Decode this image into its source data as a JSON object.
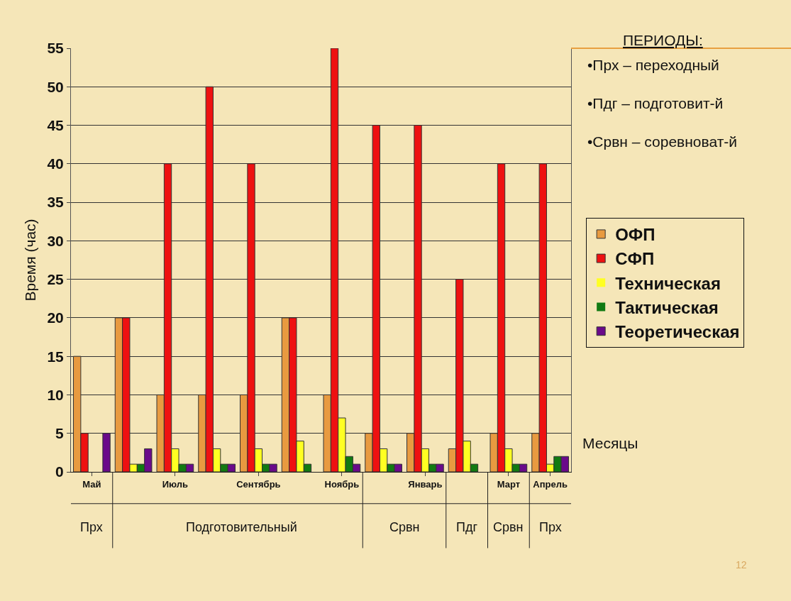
{
  "chart_data": {
    "type": "bar",
    "xlabel": "Месяцы",
    "ylabel": "Время (час)",
    "legend": "right",
    "grid": "y",
    "categories": [
      "Май",
      null,
      "Июль",
      null,
      "Сентябрь",
      null,
      "Ноябрь",
      null,
      "Январь",
      null,
      "Март",
      "Апрель"
    ],
    "series": [
      {
        "name": "ОФП",
        "color": "#e89a40",
        "values": [
          15,
          20,
          10,
          10,
          10,
          20,
          10,
          5,
          5,
          3,
          5,
          5
        ]
      },
      {
        "name": "СФП",
        "color": "#ee1111",
        "values": [
          5,
          20,
          40,
          50,
          40,
          20,
          55,
          45,
          45,
          25,
          40,
          40
        ]
      },
      {
        "name": "Техническая",
        "color": "#ffff22",
        "values": [
          0,
          1,
          3,
          3,
          3,
          4,
          7,
          3,
          3,
          4,
          3,
          1
        ]
      },
      {
        "name": "Тактическая",
        "color": "#127a12",
        "values": [
          0,
          1,
          1,
          1,
          1,
          1,
          2,
          1,
          1,
          1,
          1,
          2
        ]
      },
      {
        "name": "Теоретическая",
        "color": "#6a0a8a",
        "values": [
          5,
          3,
          1,
          1,
          1,
          0,
          1,
          1,
          1,
          0,
          1,
          2
        ]
      }
    ],
    "ylim": [
      0,
      55
    ],
    "yticks": [
      0,
      5,
      10,
      15,
      20,
      25,
      30,
      35,
      40,
      45,
      50,
      55
    ],
    "annotations": [
      "ПЕРИОДЫ:",
      "•Прх – переходный",
      "•Пдг – подготовит-й",
      "•Срвн – соревноват-й",
      "Прх",
      "Подготовительный",
      "Срвн",
      "Пдг",
      "Срвн",
      "Прх",
      "12"
    ]
  }
}
